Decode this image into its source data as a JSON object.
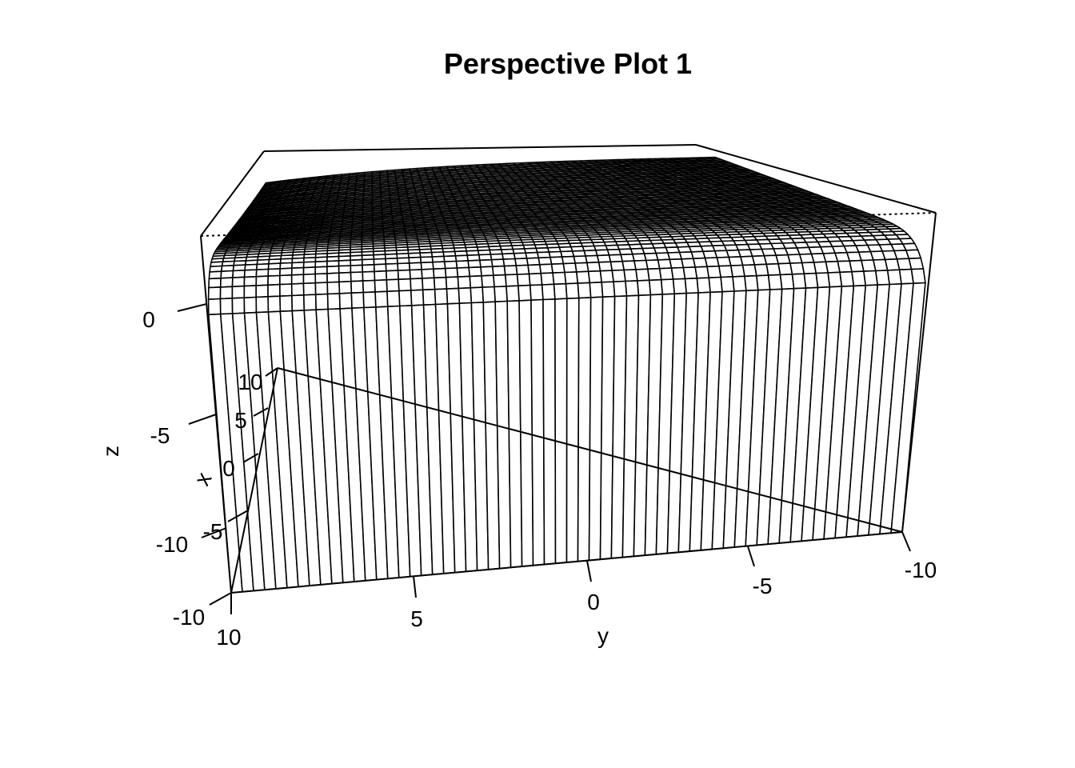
{
  "chart_data": {
    "type": "surface",
    "title": "Perspective Plot 1",
    "xlabel": "x",
    "ylabel": "y",
    "zlabel": "z",
    "x_ticks": [
      "-10",
      "-5",
      "0",
      "5",
      "10"
    ],
    "y_ticks": [
      "10",
      "5",
      "0",
      "-5",
      "-10"
    ],
    "z_ticks": [
      "-10",
      "-5",
      "0"
    ],
    "xlim": [
      -10,
      10
    ],
    "ylim": [
      -10,
      10
    ],
    "zlim": [
      -10,
      3
    ],
    "grid_n": 60,
    "surface": "rounded plateau: z is about 2 across most of the x-y domain, curving down toward the far corners and dropping steeply to -10 along the x = 10 edge",
    "line_color": "#000000"
  }
}
